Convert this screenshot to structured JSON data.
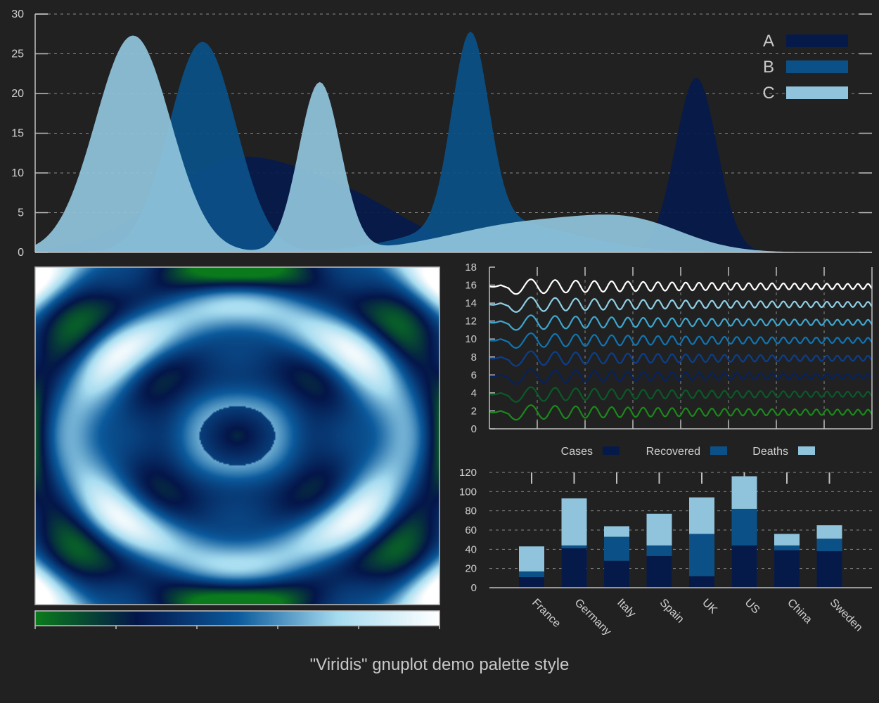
{
  "title": "\"Viridis\" gnuplot demo palette style",
  "colors": {
    "background": "#212121",
    "axis": "#bfbfbf",
    "grid": "#8a8a8a",
    "text": "#d0d0d0",
    "A": "#061a4a",
    "B": "#0b5188",
    "C": "#8fc4dc"
  },
  "chart_data": [
    {
      "type": "area",
      "ylim": [
        0,
        30
      ],
      "yticks": [
        "0",
        "5",
        "10",
        "15",
        "20",
        "25",
        "30"
      ],
      "grid": true,
      "legend": "top-right",
      "series": [
        {
          "name": "A",
          "color": "#061a4a",
          "components": [
            {
              "center": 0.24,
              "amp": 11.5,
              "width": 0.09
            },
            {
              "center": 0.39,
              "amp": 4.5,
              "width": 0.07
            },
            {
              "center": 0.79,
              "amp": 22.0,
              "width": 0.025
            }
          ]
        },
        {
          "name": "B",
          "color": "#0b5188",
          "components": [
            {
              "center": 0.2,
              "amp": 26.5,
              "width": 0.04
            },
            {
              "center": 0.52,
              "amp": 24.0,
              "width": 0.022
            },
            {
              "center": 0.55,
              "amp": 4.0,
              "width": 0.09
            }
          ]
        },
        {
          "name": "C",
          "color": "#8fc4dc",
          "components": [
            {
              "center": 0.117,
              "amp": 27.3,
              "width": 0.045
            },
            {
              "center": 0.34,
              "amp": 21.3,
              "width": 0.025
            },
            {
              "center": 0.6,
              "amp": 3.8,
              "width": 0.1
            },
            {
              "center": 0.72,
              "amp": 2.5,
              "width": 0.06
            }
          ]
        }
      ]
    },
    {
      "type": "heatmap",
      "function": "radial-ripple",
      "palette": [
        "#0a7a1c",
        "#04164a",
        "#0b5a9c",
        "#a6dcf0",
        "#ffffff"
      ],
      "colorbar": "bottom"
    },
    {
      "type": "line",
      "ylim": [
        0,
        18
      ],
      "yticks": [
        "0",
        "2",
        "4",
        "6",
        "8",
        "10",
        "12",
        "14",
        "16",
        "18"
      ],
      "grid": true,
      "series": [
        {
          "offset": 16,
          "color": "#ffffff"
        },
        {
          "offset": 14,
          "color": "#8fd0e6"
        },
        {
          "offset": 12,
          "color": "#3ea7d0"
        },
        {
          "offset": 10,
          "color": "#1075b3"
        },
        {
          "offset": 8,
          "color": "#0b3f8c"
        },
        {
          "offset": 6,
          "color": "#06225e"
        },
        {
          "offset": 4,
          "color": "#0a5a28"
        },
        {
          "offset": 2,
          "color": "#1a8a1a"
        }
      ]
    },
    {
      "type": "bar",
      "stacked": true,
      "ylim": [
        0,
        120
      ],
      "yticks": [
        "0",
        "20",
        "40",
        "60",
        "80",
        "100",
        "120"
      ],
      "legend": "top",
      "categories": [
        "France",
        "Germany",
        "Italy",
        "Spain",
        "UK",
        "US",
        "China",
        "Sweden"
      ],
      "series": [
        {
          "name": "Cases",
          "color": "#061a4a",
          "values": [
            11,
            41,
            28,
            33,
            12,
            44,
            39,
            38
          ]
        },
        {
          "name": "Recovered",
          "color": "#0b5188",
          "values": [
            6,
            3,
            25,
            11,
            44,
            38,
            5,
            13
          ]
        },
        {
          "name": "Deaths",
          "color": "#8fc4dc",
          "values": [
            26,
            49,
            11,
            33,
            38,
            34,
            12,
            14
          ]
        }
      ]
    }
  ]
}
